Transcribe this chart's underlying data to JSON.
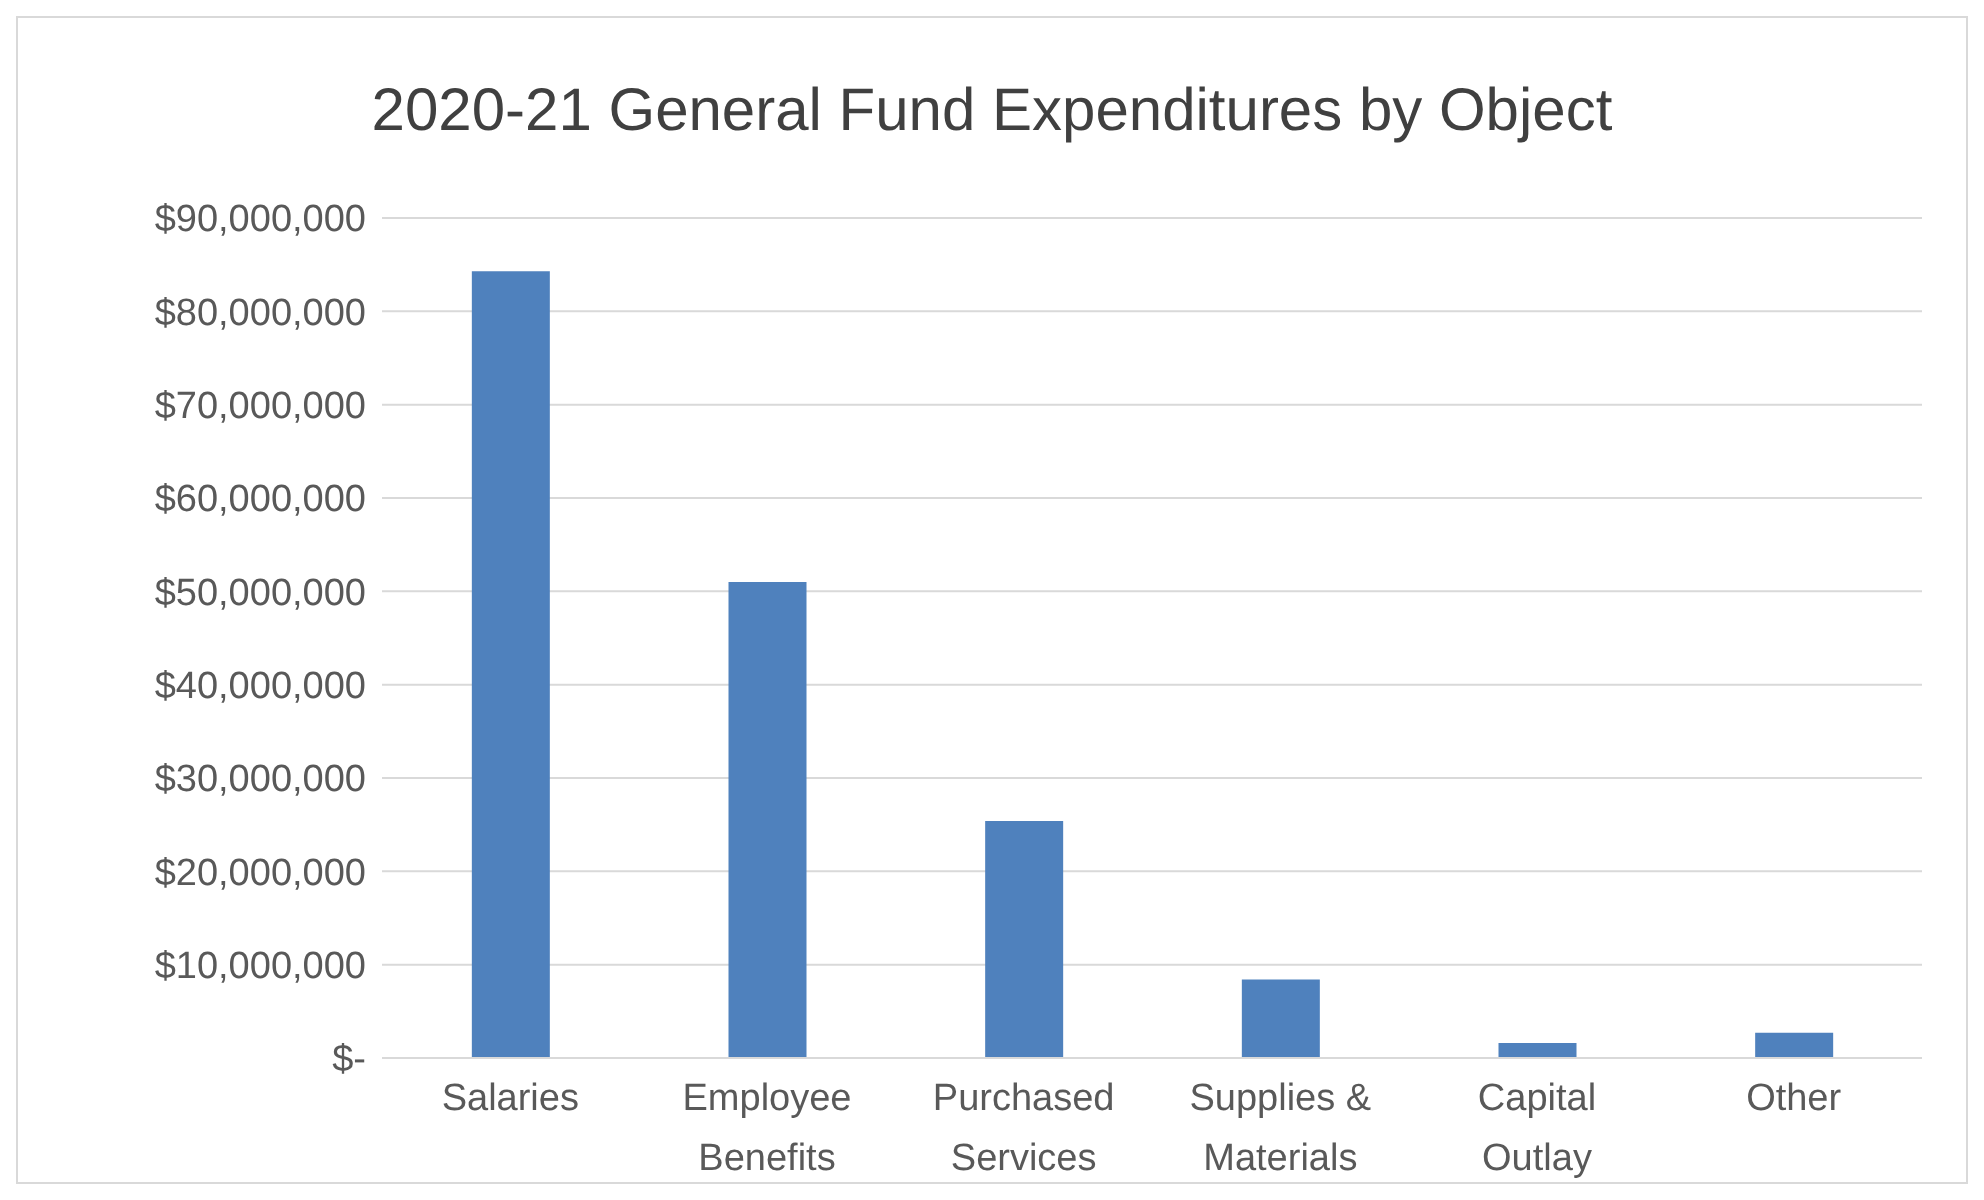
{
  "chart_data": {
    "type": "bar",
    "title": "2020-21 General Fund Expenditures by Object",
    "categories": [
      "Salaries",
      "Employee Benefits",
      "Purchased Services",
      "Supplies & Materials",
      "Capital Outlay",
      "Other"
    ],
    "values": [
      84300000,
      51000000,
      25400000,
      8400000,
      1600000,
      2700000
    ],
    "color": "#4f81bd",
    "ylim": [
      0,
      90000000
    ],
    "yticks": [
      {
        "value": 0,
        "label": "$-"
      },
      {
        "value": 10000000,
        "label": "$10,000,000"
      },
      {
        "value": 20000000,
        "label": "$20,000,000"
      },
      {
        "value": 30000000,
        "label": "$30,000,000"
      },
      {
        "value": 40000000,
        "label": "$40,000,000"
      },
      {
        "value": 50000000,
        "label": "$50,000,000"
      },
      {
        "value": 60000000,
        "label": "$60,000,000"
      },
      {
        "value": 70000000,
        "label": "$70,000,000"
      },
      {
        "value": 80000000,
        "label": "$80,000,000"
      },
      {
        "value": 90000000,
        "label": "$90,000,000"
      }
    ],
    "grid": "y"
  }
}
